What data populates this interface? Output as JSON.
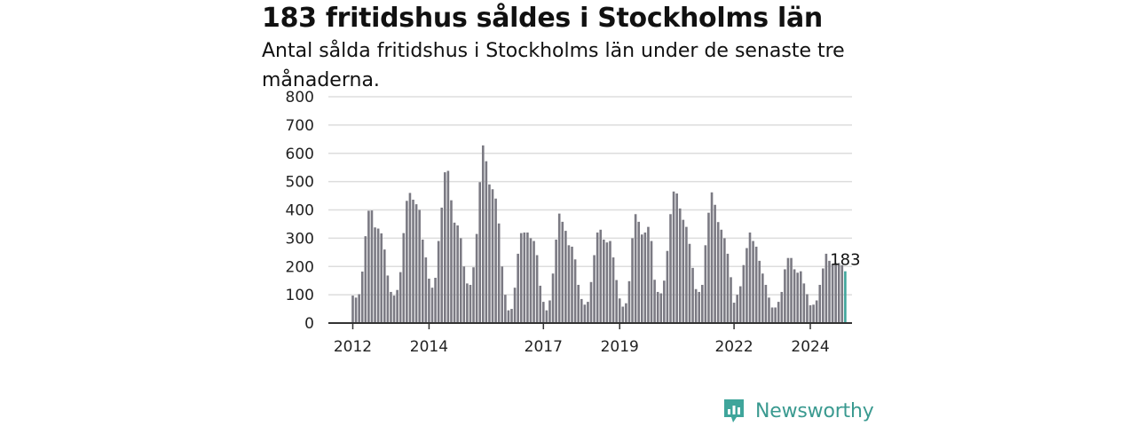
{
  "chart_data": {
    "type": "bar",
    "title": "183 fritidshus såldes i Stockholms län",
    "subtitle": "Antal sålda fritidshus i Stockholms län under de senaste tre månaderna.",
    "xlabel": "",
    "ylabel": "",
    "ylim": [
      0,
      800
    ],
    "y_ticks": [
      0,
      100,
      200,
      300,
      400,
      500,
      600,
      700,
      800
    ],
    "x_tick_labels": [
      "2012",
      "2014",
      "2017",
      "2019",
      "2022",
      "2024"
    ],
    "grid": true,
    "highlight_label": "183",
    "bar_color": "#7b7a83",
    "highlight_color": "#3fa59b",
    "values": [
      97,
      90,
      102,
      182,
      307,
      397,
      398,
      338,
      334,
      317,
      260,
      168,
      110,
      97,
      117,
      180,
      318,
      432,
      460,
      436,
      420,
      400,
      295,
      232,
      157,
      125,
      160,
      290,
      408,
      533,
      538,
      434,
      355,
      345,
      300,
      200,
      140,
      135,
      197,
      315,
      498,
      628,
      572,
      490,
      473,
      440,
      352,
      200,
      100,
      45,
      50,
      125,
      245,
      318,
      320,
      320,
      300,
      290,
      240,
      132,
      75,
      45,
      80,
      175,
      295,
      387,
      358,
      326,
      275,
      270,
      225,
      135,
      85,
      65,
      75,
      145,
      240,
      320,
      330,
      295,
      285,
      290,
      232,
      152,
      87,
      58,
      70,
      148,
      300,
      385,
      358,
      313,
      320,
      340,
      290,
      153,
      110,
      105,
      150,
      255,
      385,
      465,
      458,
      405,
      365,
      340,
      280,
      195,
      120,
      110,
      135,
      275,
      390,
      462,
      418,
      357,
      330,
      300,
      245,
      162,
      72,
      100,
      130,
      205,
      265,
      320,
      290,
      270,
      220,
      175,
      135,
      90,
      55,
      55,
      75,
      110,
      190,
      230,
      230,
      190,
      178,
      183,
      140,
      102,
      63,
      65,
      80,
      135,
      193,
      245,
      220,
      208,
      212,
      212,
      205,
      183
    ]
  },
  "brand": {
    "name": "Newsworthy"
  }
}
